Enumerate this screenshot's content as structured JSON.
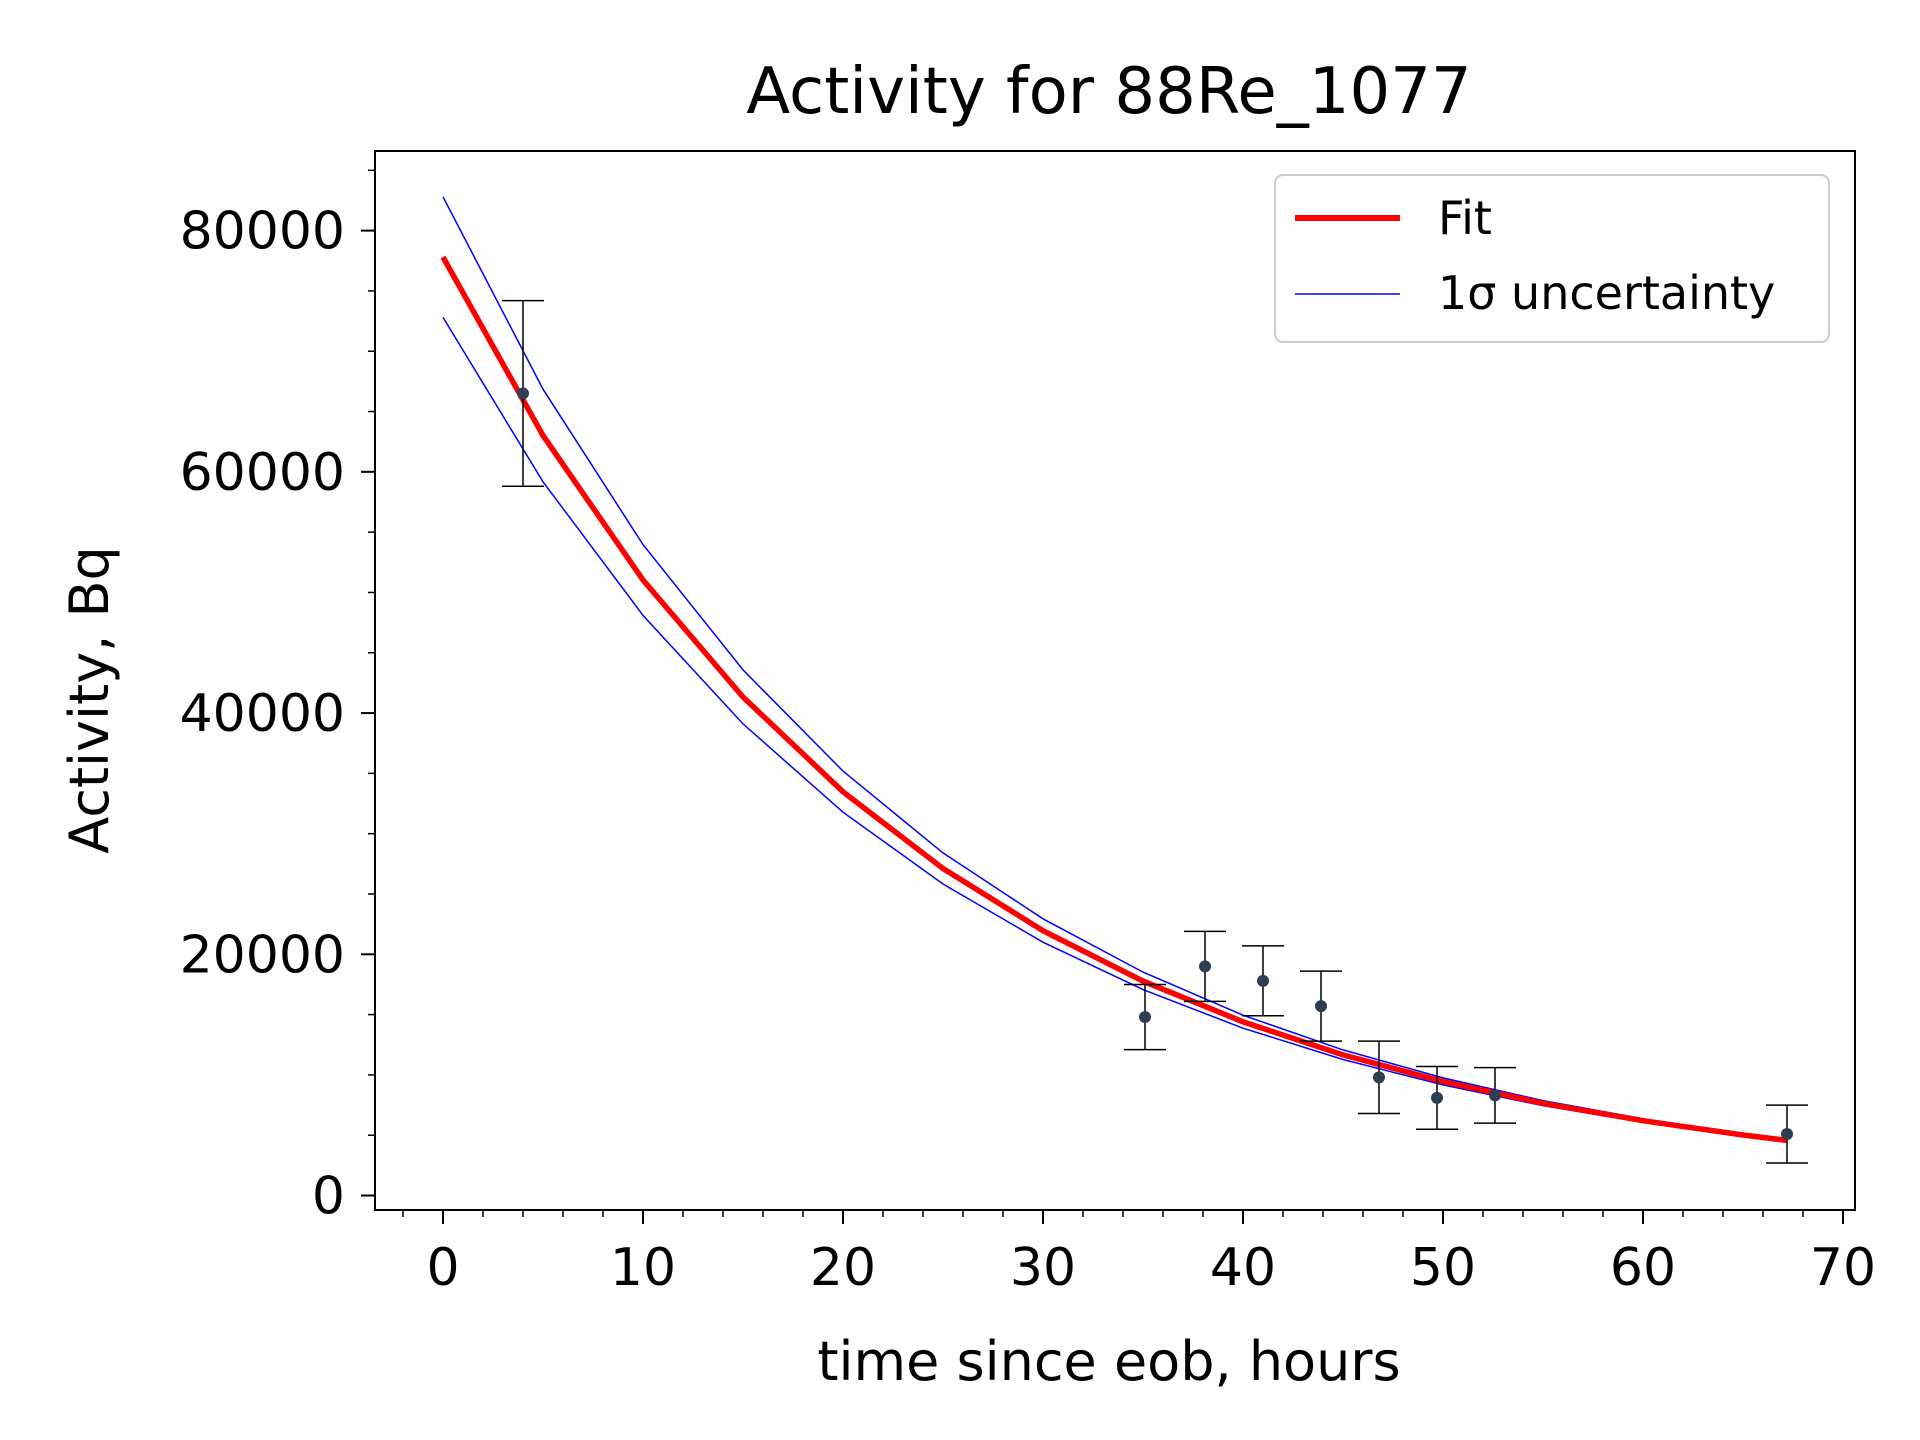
{
  "chart_data": {
    "type": "scatter",
    "title": "Activity for 88Re_1077",
    "xlabel": "time since eob, hours",
    "ylabel": "Activity, Bq",
    "xlim": [
      -3.4,
      70.6
    ],
    "ylim": [
      -1200,
      86600
    ],
    "xticks": [
      0,
      10,
      20,
      30,
      40,
      50,
      60,
      70
    ],
    "yticks": [
      0,
      20000,
      40000,
      60000,
      80000
    ],
    "grid": false,
    "legend_position": "top-right",
    "colors": {
      "fit": "#ff0000",
      "uncertainty": "#0000ff",
      "points": "#2c3e50",
      "errorbars": "#000000"
    },
    "series": [
      {
        "name": "Fit",
        "kind": "curve",
        "x": [
          0,
          5,
          10,
          15,
          20,
          25,
          30,
          35,
          40,
          45,
          50,
          55,
          60,
          65,
          67.2
        ],
        "y": [
          77800,
          63010,
          51030,
          41330,
          33470,
          27110,
          21960,
          17780,
          14400,
          11660,
          9450,
          7650,
          6200,
          5020,
          4570
        ]
      },
      {
        "name": "1σ uncertainty",
        "kind": "band",
        "x": [
          0,
          5,
          10,
          15,
          20,
          25,
          30,
          35,
          40,
          45,
          50,
          55,
          60,
          65,
          67.2
        ],
        "upper": [
          82800,
          66850,
          53970,
          43580,
          35190,
          28410,
          22940,
          18520,
          14950,
          12070,
          9750,
          7870,
          6360,
          5130,
          4660
        ],
        "lower": [
          72800,
          59170,
          48100,
          39100,
          31780,
          25830,
          21000,
          17070,
          13870,
          11280,
          9170,
          7450,
          6060,
          4920,
          4490
        ]
      },
      {
        "name": "",
        "kind": "points",
        "x": [
          4.0,
          35.1,
          38.1,
          41.0,
          43.9,
          46.8,
          49.7,
          52.6,
          67.2
        ],
        "y": [
          66500,
          14800,
          19000,
          17800,
          15700,
          9800,
          8100,
          8300,
          5100
        ],
        "err": [
          7700,
          2700,
          2900,
          2900,
          2900,
          3000,
          2600,
          2300,
          2400
        ]
      }
    ]
  }
}
